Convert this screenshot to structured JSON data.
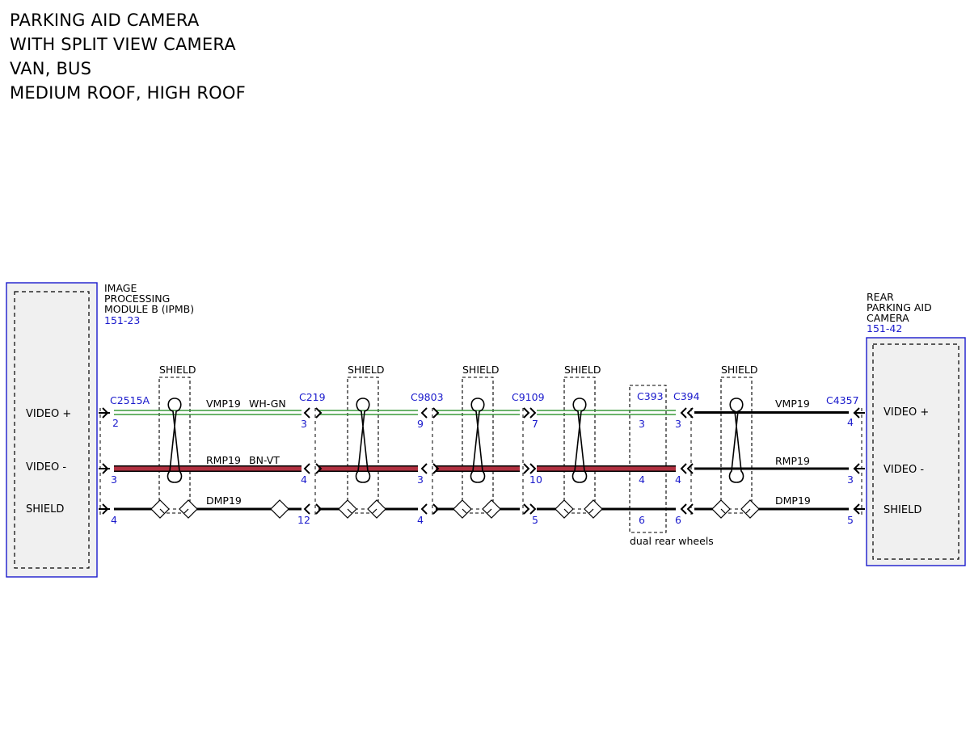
{
  "title_lines": [
    "PARKING AID CAMERA",
    "WITH SPLIT VIEW CAMERA",
    "VAN, BUS",
    "MEDIUM ROOF, HIGH ROOF"
  ],
  "colors": {
    "connector_blue": "#1a1acc",
    "module_fill": "#f0f0f0",
    "wire_black": "#000000",
    "wire_red": "#b03040",
    "wire_green": "#3a9a3a"
  },
  "left_module": {
    "name_lines": [
      "IMAGE",
      "PROCESSING",
      "MODULE B (IPMB)"
    ],
    "ref": "151-23",
    "pins": [
      "VIDEO +",
      "VIDEO -",
      "SHIELD"
    ]
  },
  "right_module": {
    "name_lines": [
      "REAR",
      "PARKING AID",
      "CAMERA"
    ],
    "ref": "151-42",
    "pins": [
      "VIDEO +",
      "VIDEO -",
      "SHIELD"
    ]
  },
  "shield_label": "SHIELD",
  "connectors": [
    {
      "name": "C2515A",
      "pins": [
        "2",
        "3",
        "4"
      ]
    },
    {
      "name": "C219",
      "pins": [
        "3",
        "4",
        "12"
      ]
    },
    {
      "name": "C9803",
      "pins": [
        "9",
        "3",
        "4"
      ]
    },
    {
      "name": "C9109",
      "pins": [
        "7",
        "10",
        "5"
      ]
    },
    {
      "name": "C393",
      "pins": [
        "3",
        "4",
        "6"
      ]
    },
    {
      "name": "C394",
      "pins": [
        "3",
        "4",
        "6"
      ]
    },
    {
      "name": "C4357",
      "pins": [
        "4",
        "3",
        "5"
      ]
    }
  ],
  "wire_labels": {
    "vmp_left": "VMP19",
    "vmp_color": "WH-GN",
    "rmp_left": "RMP19",
    "rmp_color": "BN-VT",
    "dmp_left": "DMP19",
    "vmp_right": "VMP19",
    "rmp_right": "RMP19",
    "dmp_right": "DMP19"
  },
  "note": "dual rear wheels"
}
